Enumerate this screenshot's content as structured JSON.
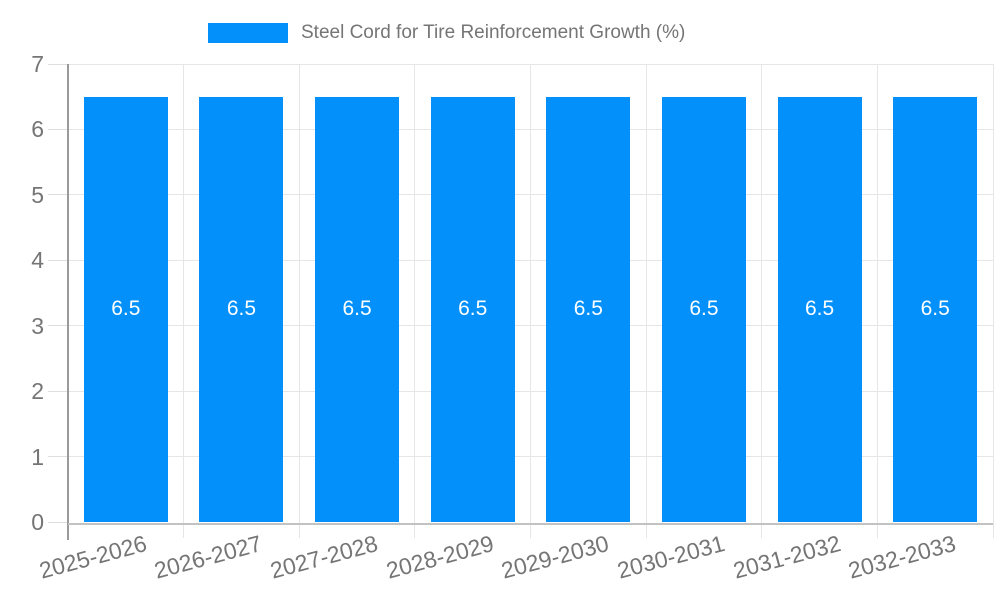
{
  "legend": {
    "label": "Steel Cord for Tire Reinforcement Growth (%)"
  },
  "colors": {
    "bar": "#0390fb",
    "bar_label_text": "#ffffff",
    "gridline": "#e6e6e6",
    "tick": "#dedede",
    "axis_y_line": "#9a9a9a",
    "axis_x_line": "#c2c2c2",
    "label_text": "#757575"
  },
  "chart_data": {
    "type": "bar",
    "title": "Steel Cord for Tire Reinforcement Growth (%)",
    "categories": [
      "2025-2026",
      "2026-2027",
      "2027-2028",
      "2028-2029",
      "2029-2030",
      "2030-2031",
      "2031-2032",
      "2032-2033"
    ],
    "values": [
      6.5,
      6.5,
      6.5,
      6.5,
      6.5,
      6.5,
      6.5,
      6.5
    ],
    "bar_labels": [
      "6.5",
      "6.5",
      "6.5",
      "6.5",
      "6.5",
      "6.5",
      "6.5",
      "6.5"
    ],
    "xlabel": "",
    "ylabel": "",
    "ylim": [
      0,
      7
    ],
    "yticks": [
      0,
      1,
      2,
      3,
      4,
      5,
      6,
      7
    ],
    "ytick_labels": [
      "0",
      "1",
      "2",
      "3",
      "4",
      "5",
      "6",
      "7"
    ],
    "grid": true,
    "legend_position": "top"
  }
}
